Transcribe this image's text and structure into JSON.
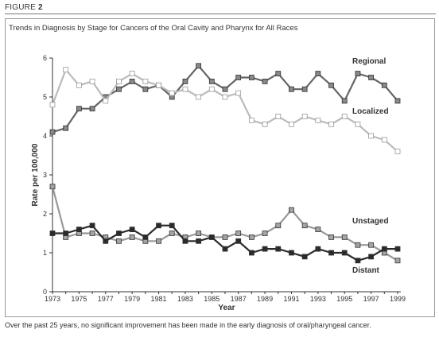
{
  "figure": {
    "label_prefix": "FIGURE",
    "label_number": "2"
  },
  "subtitle": "Trends in Diagnosis by Stage for Cancers of the Oral Cavity and Pharynx for All Races",
  "caption": "Over the past 25 years, no significant improvement has been made in the early diagnosis of oral/pharyngeal cancer.",
  "chart_data": {
    "type": "line",
    "title": "Trends in Diagnosis by Stage for Cancers of the Oral Cavity and Pharynx for All Races",
    "xlabel": "Year",
    "ylabel": "Rate per 100,000",
    "ylim": [
      0,
      6
    ],
    "xlim": [
      1973,
      1999
    ],
    "y_ticks": [
      "0",
      "1",
      "2",
      "3",
      "4",
      "5",
      "6"
    ],
    "x_ticks": [
      "1973",
      "1975",
      "1977",
      "1979",
      "1981",
      "1983",
      "1985",
      "1987",
      "1989",
      "1991",
      "1993",
      "1995",
      "1997",
      "1999"
    ],
    "grid": false,
    "legend": "direct labels at right",
    "x": [
      1973,
      1974,
      1975,
      1976,
      1977,
      1978,
      1979,
      1980,
      1981,
      1982,
      1983,
      1984,
      1985,
      1986,
      1987,
      1988,
      1989,
      1990,
      1991,
      1992,
      1993,
      1994,
      1995,
      1996,
      1997,
      1998,
      1999
    ],
    "series": [
      {
        "name": "Regional",
        "color": "#666666",
        "fill": "#888888",
        "values": [
          4.1,
          4.2,
          4.7,
          4.7,
          5.0,
          5.2,
          5.4,
          5.2,
          5.3,
          5.0,
          5.4,
          5.8,
          5.4,
          5.2,
          5.5,
          5.5,
          5.4,
          5.6,
          5.2,
          5.2,
          5.6,
          5.3,
          4.9,
          5.6,
          5.5,
          5.3,
          4.9
        ]
      },
      {
        "name": "Localized",
        "color": "#bbbbbb",
        "fill": "#ffffff",
        "values": [
          4.8,
          5.7,
          5.3,
          5.4,
          4.9,
          5.4,
          5.6,
          5.4,
          5.3,
          5.1,
          5.2,
          5.0,
          5.2,
          5.0,
          5.1,
          4.4,
          4.3,
          4.5,
          4.3,
          4.5,
          4.4,
          4.3,
          4.5,
          4.3,
          4.0,
          3.9,
          3.6
        ]
      },
      {
        "name": "Unstaged",
        "color": "#999999",
        "fill": "#a5a5a5",
        "values": [
          2.7,
          1.4,
          1.5,
          1.5,
          1.4,
          1.3,
          1.4,
          1.3,
          1.3,
          1.5,
          1.4,
          1.5,
          1.4,
          1.4,
          1.5,
          1.4,
          1.5,
          1.7,
          2.1,
          1.7,
          1.6,
          1.4,
          1.4,
          1.2,
          1.2,
          1.0,
          0.8
        ]
      },
      {
        "name": "Distant",
        "color": "#2b2b2b",
        "fill": "#2b2b2b",
        "values": [
          1.5,
          1.5,
          1.6,
          1.7,
          1.3,
          1.5,
          1.6,
          1.4,
          1.7,
          1.7,
          1.3,
          1.3,
          1.4,
          1.1,
          1.3,
          1.0,
          1.1,
          1.1,
          1.0,
          0.9,
          1.1,
          1.0,
          1.0,
          0.8,
          0.9,
          1.1,
          1.1
        ]
      }
    ]
  }
}
